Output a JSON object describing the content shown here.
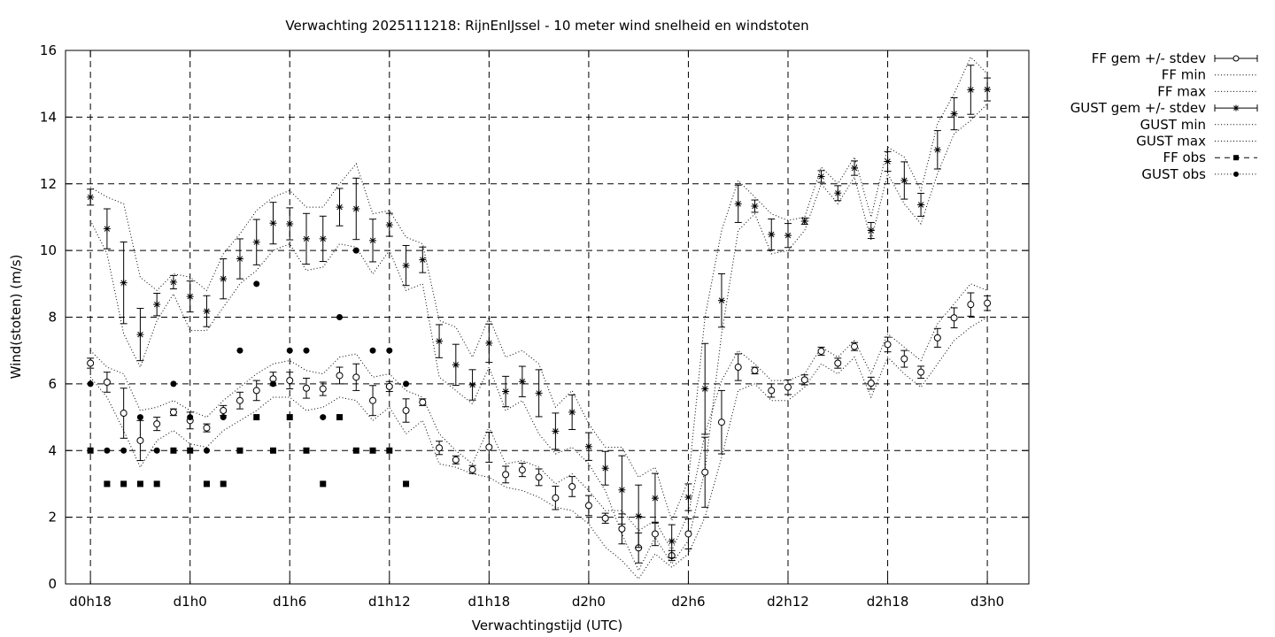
{
  "chart_data": {
    "type": "line",
    "title": "Verwachting 2025111218: RijnEnIJssel - 10 meter wind snelheid en windstoten",
    "xlabel": "Verwachtingstijd (UTC)",
    "ylabel": "Wind(stoten) (m/s)",
    "ylim": [
      0,
      16
    ],
    "xlim": [
      -1.5,
      56.5
    ],
    "yticks": [
      0,
      2,
      4,
      6,
      8,
      10,
      12,
      14,
      16
    ],
    "xticks": [
      {
        "x": 0,
        "label": "d0h18"
      },
      {
        "x": 6,
        "label": "d1h0"
      },
      {
        "x": 12,
        "label": "d1h6"
      },
      {
        "x": 18,
        "label": "d1h12"
      },
      {
        "x": 24,
        "label": "d1h18"
      },
      {
        "x": 30,
        "label": "d2h0"
      },
      {
        "x": 36,
        "label": "d2h6"
      },
      {
        "x": 42,
        "label": "d2h12"
      },
      {
        "x": 48,
        "label": "d2h18"
      },
      {
        "x": 54,
        "label": "d3h0"
      }
    ],
    "grid": true,
    "legend_position": "outside-right",
    "x": [
      0,
      1,
      2,
      3,
      4,
      5,
      6,
      7,
      8,
      9,
      10,
      11,
      12,
      13,
      14,
      15,
      16,
      17,
      18,
      19,
      20,
      21,
      22,
      23,
      24,
      25,
      26,
      27,
      28,
      29,
      30,
      31,
      32,
      33,
      34,
      35,
      36,
      37,
      38,
      39,
      40,
      41,
      42,
      43,
      44,
      45,
      46,
      47,
      48,
      49,
      50,
      51,
      52,
      53,
      54
    ],
    "series": [
      {
        "name": "FF gem +/- stdev",
        "values": [
          6.62,
          6.05,
          5.12,
          4.3,
          4.8,
          5.15,
          4.9,
          4.68,
          5.2,
          5.5,
          5.8,
          6.15,
          6.1,
          5.87,
          5.85,
          6.25,
          6.2,
          5.5,
          5.92,
          5.2,
          5.45,
          4.08,
          3.72,
          3.43,
          4.1,
          3.28,
          3.42,
          3.2,
          2.58,
          2.92,
          2.35,
          1.97,
          1.65,
          1.08,
          1.5,
          0.85,
          1.5,
          3.35,
          4.85,
          6.5,
          6.4,
          5.8,
          5.9,
          6.12,
          6.98,
          6.62,
          7.12,
          6.02,
          7.18,
          6.75,
          6.35,
          7.38,
          7.98,
          8.38,
          8.42
        ],
        "stdev": [
          0.15,
          0.3,
          0.75,
          0.6,
          0.2,
          0.1,
          0.25,
          0.12,
          0.15,
          0.25,
          0.3,
          0.2,
          0.25,
          0.3,
          0.2,
          0.25,
          0.4,
          0.45,
          0.15,
          0.35,
          0.1,
          0.2,
          0.12,
          0.12,
          0.45,
          0.25,
          0.2,
          0.25,
          0.35,
          0.3,
          0.3,
          0.15,
          0.45,
          0.45,
          0.35,
          0.15,
          0.45,
          1.05,
          0.95,
          0.4,
          0.1,
          0.2,
          0.22,
          0.15,
          0.12,
          0.15,
          0.12,
          0.18,
          0.22,
          0.25,
          0.18,
          0.28,
          0.3,
          0.35,
          0.22
        ]
      },
      {
        "name": "FF min",
        "values": [
          6.2,
          5.6,
          4.6,
          3.5,
          4.3,
          4.6,
          4.2,
          4.1,
          4.6,
          4.9,
          5.2,
          5.6,
          5.6,
          5.2,
          5.3,
          5.6,
          5.5,
          4.9,
          5.3,
          4.5,
          4.9,
          3.6,
          3.5,
          3.3,
          3.2,
          2.9,
          2.8,
          2.6,
          2.3,
          2.2,
          1.8,
          1.1,
          0.7,
          0.15,
          0.9,
          0.5,
          0.9,
          2.0,
          3.8,
          5.8,
          6.0,
          5.5,
          5.5,
          5.9,
          6.6,
          6.3,
          6.8,
          5.6,
          6.8,
          6.3,
          5.9,
          6.6,
          7.3,
          7.7,
          8.0
        ]
      },
      {
        "name": "FF max",
        "values": [
          7.0,
          6.5,
          6.3,
          5.2,
          5.3,
          5.5,
          5.2,
          5.0,
          5.5,
          5.9,
          6.3,
          6.6,
          6.7,
          6.4,
          6.3,
          6.8,
          6.9,
          6.2,
          6.3,
          5.8,
          5.6,
          4.5,
          4.0,
          3.6,
          4.7,
          3.6,
          3.7,
          3.5,
          3.0,
          3.3,
          2.8,
          2.2,
          2.2,
          1.6,
          1.9,
          1.0,
          2.1,
          4.5,
          6.1,
          7.0,
          6.6,
          6.1,
          6.1,
          6.3,
          7.1,
          6.8,
          7.3,
          6.3,
          7.5,
          7.1,
          6.7,
          7.8,
          8.4,
          9.0,
          8.8
        ]
      },
      {
        "name": "GUST gem +/- stdev",
        "values": [
          11.6,
          10.65,
          9.03,
          7.48,
          8.38,
          9.05,
          8.62,
          8.18,
          9.15,
          9.75,
          10.25,
          10.82,
          10.8,
          10.35,
          10.35,
          11.3,
          11.25,
          10.3,
          10.77,
          9.55,
          9.72,
          7.28,
          6.57,
          5.97,
          7.22,
          5.77,
          6.07,
          5.72,
          4.58,
          5.15,
          4.12,
          3.47,
          2.82,
          2.03,
          2.57,
          1.28,
          2.6,
          5.85,
          8.5,
          11.4,
          11.33,
          10.48,
          10.45,
          10.88,
          12.22,
          11.72,
          12.47,
          10.6,
          12.67,
          12.1,
          11.37,
          13.02,
          14.1,
          14.82,
          14.83
        ]
      },
      {
        "name": "GUST min",
        "values": [
          10.9,
          9.9,
          7.5,
          6.5,
          7.9,
          8.7,
          7.6,
          7.6,
          8.3,
          9.0,
          9.4,
          10.0,
          10.2,
          9.4,
          9.5,
          10.2,
          10.1,
          9.3,
          10.0,
          8.8,
          9.0,
          6.2,
          5.8,
          5.4,
          6.5,
          5.2,
          5.5,
          4.5,
          3.9,
          4.1,
          3.6,
          2.8,
          1.5,
          0.4,
          1.4,
          0.6,
          1.3,
          3.4,
          7.5,
          10.6,
          11.1,
          9.9,
          10.0,
          10.6,
          12.0,
          11.4,
          12.2,
          10.3,
          12.3,
          11.4,
          10.8,
          12.3,
          13.5,
          13.9,
          14.4
        ]
      },
      {
        "name": "GUST max",
        "values": [
          11.9,
          11.6,
          11.4,
          9.2,
          8.8,
          9.3,
          9.2,
          8.8,
          9.9,
          10.5,
          11.2,
          11.6,
          11.8,
          11.3,
          11.3,
          12.0,
          12.6,
          11.1,
          11.2,
          10.4,
          10.2,
          7.9,
          7.7,
          6.8,
          8.0,
          6.8,
          7.0,
          6.6,
          5.3,
          5.8,
          4.8,
          4.1,
          4.1,
          3.2,
          3.5,
          1.9,
          3.1,
          8.0,
          10.6,
          12.1,
          11.6,
          11.1,
          10.9,
          11.0,
          12.5,
          12.0,
          12.8,
          11.0,
          13.1,
          12.8,
          11.8,
          13.8,
          14.7,
          15.8,
          15.3
        ]
      },
      {
        "name": "FF obs",
        "x": [
          0,
          1,
          2,
          3,
          4,
          5,
          6,
          7,
          8,
          9,
          10,
          11,
          12,
          13,
          14,
          15,
          16,
          17,
          18,
          19
        ],
        "values": [
          4,
          3,
          3,
          3,
          3,
          4,
          4,
          3,
          3,
          4,
          5,
          4,
          5,
          4,
          3,
          5,
          4,
          4,
          4,
          3
        ]
      },
      {
        "name": "GUST obs",
        "x": [
          0,
          1,
          2,
          3,
          4,
          5,
          6,
          7,
          8,
          9,
          10,
          11,
          12,
          13,
          14,
          15,
          16,
          17,
          18,
          19
        ],
        "values": [
          6,
          4,
          4,
          5,
          4,
          6,
          5,
          4,
          5,
          7,
          9,
          6,
          7,
          7,
          5,
          8,
          10,
          7,
          7,
          6
        ]
      }
    ],
    "colors": {
      "lines": "#000000",
      "grid": "#000000",
      "background": "#ffffff"
    }
  }
}
